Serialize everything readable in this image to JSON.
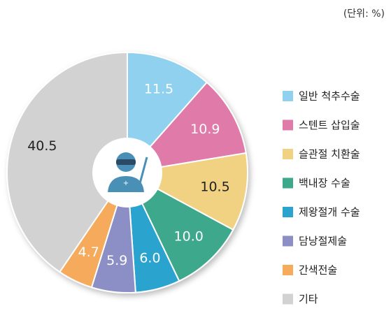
{
  "chart_data": {
    "type": "pie",
    "unit_note": "(단위: %)",
    "categories": [
      "일반 척추수술",
      "스텐트 삽입술",
      "슬관절 치환술",
      "백내장 수술",
      "제왕절개 수술",
      "담낭절제술",
      "간색전술",
      "기타"
    ],
    "values": [
      11.5,
      10.9,
      10.5,
      10.0,
      6.0,
      5.9,
      4.7,
      40.5
    ],
    "value_labels": [
      "11.5",
      "10.9",
      "10.5",
      "10.0",
      "6.0",
      "5.9",
      "4.7",
      "40.5"
    ],
    "colors": [
      "#8fd1ee",
      "#e07aa9",
      "#f1d283",
      "#3ea88c",
      "#2ba3cf",
      "#8b8fc6",
      "#f6ab5b",
      "#d2d2d2"
    ],
    "legend": "right"
  }
}
